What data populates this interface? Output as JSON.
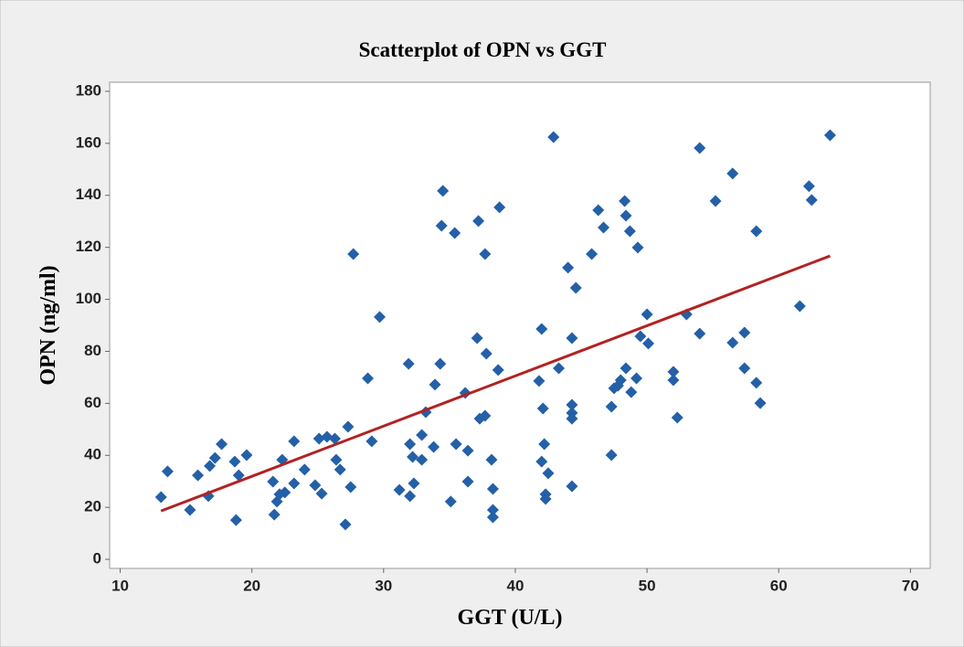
{
  "chart_data": {
    "type": "scatter",
    "title": "Scatterplot of OPN vs GGT",
    "x_label": "GGT (U/L)",
    "y_label": "OPN (ng/ml)",
    "color": "#2460a7",
    "x": [
      13.1,
      13.6,
      15.3,
      15.9,
      16.7,
      16.8,
      17.2,
      17.7,
      18.7,
      18.8,
      19.0,
      19.6,
      21.6,
      21.7,
      21.9,
      22.1,
      22.3,
      22.5,
      23.2,
      23.2,
      24.0,
      24.8,
      25.1,
      25.3,
      25.7,
      26.3,
      26.4,
      26.7,
      27.1,
      27.3,
      27.5,
      27.7,
      28.8,
      29.1,
      29.7,
      31.2,
      31.9,
      32.0,
      32.0,
      32.2,
      32.3,
      32.9,
      32.9,
      33.2,
      33.8,
      33.9,
      34.3,
      34.4,
      34.5,
      35.1,
      35.4,
      35.5,
      36.2,
      36.4,
      36.4,
      37.1,
      37.2,
      37.3,
      37.7,
      37.7,
      37.8,
      38.2,
      38.3,
      38.3,
      38.3,
      38.7,
      38.8,
      41.8,
      42.0,
      42.0,
      42.1,
      42.2,
      42.3,
      42.3,
      42.5,
      42.9,
      43.3,
      44.0,
      44.3,
      44.3,
      44.3,
      44.3,
      44.3,
      44.6,
      45.8,
      46.3,
      46.7,
      47.3,
      47.3,
      47.5,
      47.8,
      48.0,
      48.3,
      48.4,
      48.4,
      48.7,
      48.8,
      49.2,
      49.3,
      49.5,
      50.0,
      50.1,
      52.0,
      52.0,
      52.3,
      53.0,
      54.0,
      54.0,
      55.2,
      56.5,
      56.5,
      57.4,
      57.4,
      58.3,
      58.3,
      58.6,
      61.6,
      62.3,
      62.5,
      63.9
    ],
    "y": [
      23.9,
      33.8,
      19,
      32.3,
      24.3,
      35.9,
      39,
      44.3,
      37.6,
      15.1,
      32.3,
      40.1,
      29.9,
      17.2,
      22.2,
      25,
      38.3,
      25.7,
      29.2,
      45.4,
      34.5,
      28.5,
      46.4,
      25.3,
      47.1,
      46.4,
      38.3,
      34.5,
      13.4,
      51,
      27.8,
      117.4,
      69.6,
      45.4,
      93.2,
      26.7,
      75.2,
      44.3,
      24.3,
      39.4,
      29.2,
      47.8,
      38.3,
      56.6,
      43.2,
      67.2,
      75.2,
      128.3,
      141.7,
      22.2,
      125.5,
      44.3,
      64,
      41.8,
      29.9,
      85.1,
      130.1,
      54.1,
      55.2,
      117.4,
      79.1,
      38.3,
      27.1,
      19,
      16.2,
      72.8,
      135.4,
      68.6,
      88.6,
      37.6,
      58,
      44.3,
      25,
      23.2,
      33.1,
      162.4,
      73.5,
      112.2,
      85.1,
      59.4,
      56.3,
      54.1,
      28.1,
      104.4,
      117.4,
      134.3,
      127.6,
      58.7,
      40.1,
      65.8,
      66.8,
      68.9,
      137.8,
      132.2,
      73.5,
      126.2,
      64.3,
      69.6,
      119.9,
      85.8,
      94.2,
      83,
      72.1,
      68.9,
      54.5,
      94.2,
      158.2,
      86.8,
      137.8,
      148.4,
      83.3,
      87.2,
      73.5,
      126.2,
      67.9,
      60.1,
      97.4,
      143.5,
      138.2,
      163.1
    ],
    "fit_line": {
      "x": [
        13.1,
        63.9
      ],
      "y": [
        18.6,
        116.7
      ],
      "color": "#b22222"
    },
    "xlim": [
      9.2,
      71.5
    ],
    "ylim": [
      -3.5,
      183.5
    ],
    "xticks": [
      10,
      20,
      30,
      40,
      50,
      60,
      70
    ],
    "yticks": [
      0,
      20,
      40,
      60,
      80,
      100,
      120,
      140,
      160,
      180
    ]
  }
}
